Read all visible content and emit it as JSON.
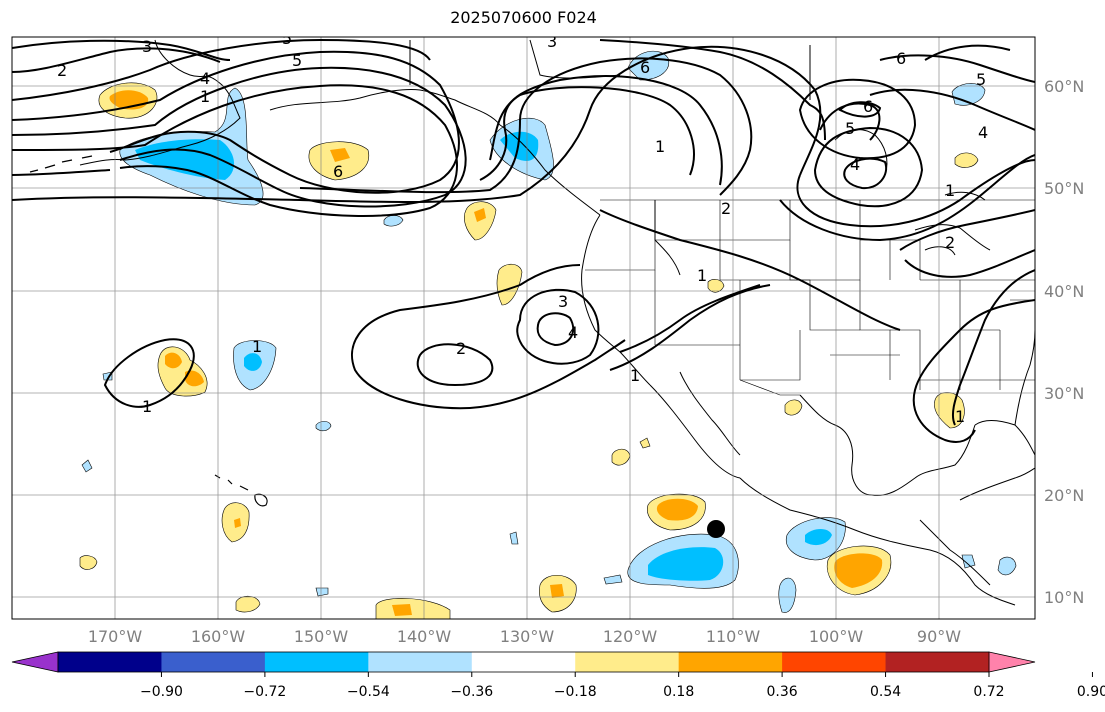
{
  "title": "2025070600 F024",
  "lon_ticks": [
    "170°W",
    "160°W",
    "150°W",
    "140°W",
    "130°W",
    "120°W",
    "110°W",
    "100°W",
    "90°W"
  ],
  "lat_ticks": [
    "60°N",
    "50°N",
    "40°N",
    "30°N",
    "20°N",
    "10°N"
  ],
  "colorbar": {
    "colors": [
      "#9932cc",
      "#00008b",
      "#3a5fcd",
      "#00bfff",
      "#b0e2ff",
      "#ffffff",
      "#ffec8b",
      "#ffa500",
      "#ff4500",
      "#b22222",
      "#ff82ab"
    ],
    "labels": [
      "−0.90",
      "−0.72",
      "−0.54",
      "−0.36",
      "−0.18",
      "0.18",
      "0.36",
      "0.54",
      "0.72",
      "0.90"
    ]
  },
  "contour_labels": [
    "3",
    "2",
    "5",
    "4",
    "6",
    "5",
    "3",
    "6",
    "6",
    "5",
    "4",
    "5",
    "6",
    "4",
    "1",
    "2",
    "2",
    "1",
    "3",
    "4",
    "2",
    "1",
    "1",
    "1",
    "1",
    "1",
    "1"
  ],
  "marker": "storm-position-dot"
}
